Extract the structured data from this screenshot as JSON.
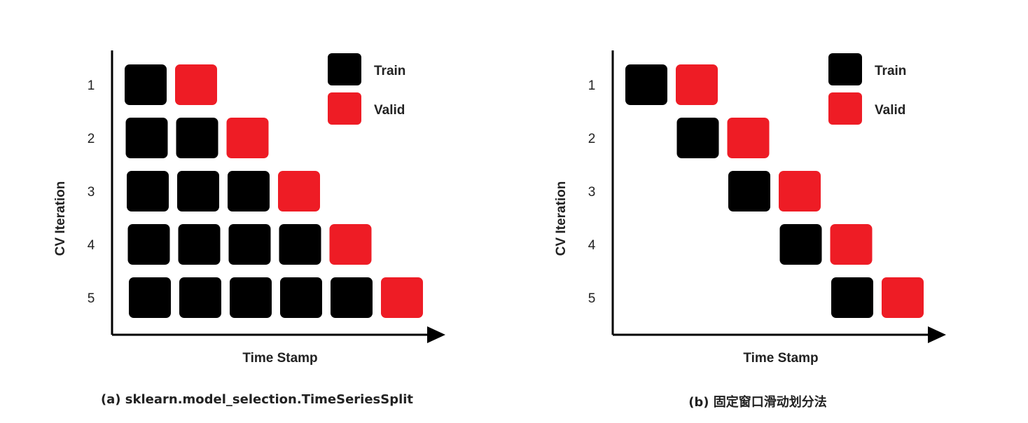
{
  "panels": [
    {
      "caption": "(a) sklearn.model_selection.TimeSeriesSplit",
      "y_axis_label": "CV Iteration",
      "x_axis_label": "Time Stamp",
      "legend": [
        {
          "label": "Train",
          "color": "#000000"
        },
        {
          "label": "Valid",
          "color": "#ee1c25"
        }
      ],
      "rows": [
        {
          "iteration": "1",
          "cells": [
            "train",
            "valid"
          ]
        },
        {
          "iteration": "2",
          "cells": [
            "train",
            "train",
            "valid"
          ]
        },
        {
          "iteration": "3",
          "cells": [
            "train",
            "train",
            "train",
            "valid"
          ]
        },
        {
          "iteration": "4",
          "cells": [
            "train",
            "train",
            "train",
            "train",
            "valid"
          ]
        },
        {
          "iteration": "5",
          "cells": [
            "train",
            "train",
            "train",
            "train",
            "train",
            "valid"
          ]
        }
      ],
      "offset_per_row": 0
    },
    {
      "caption": "(b) 固定窗口滑动划分法",
      "y_axis_label": "CV Iteration",
      "x_axis_label": "Time Stamp",
      "legend": [
        {
          "label": "Train",
          "color": "#000000"
        },
        {
          "label": "Valid",
          "color": "#ee1c25"
        }
      ],
      "rows": [
        {
          "iteration": "1",
          "cells": [
            "train",
            "valid"
          ]
        },
        {
          "iteration": "2",
          "cells": [
            "train",
            "valid"
          ]
        },
        {
          "iteration": "3",
          "cells": [
            "train",
            "valid"
          ]
        },
        {
          "iteration": "4",
          "cells": [
            "train",
            "valid"
          ]
        },
        {
          "iteration": "5",
          "cells": [
            "train",
            "valid"
          ]
        }
      ],
      "offset_per_row": 1
    }
  ]
}
